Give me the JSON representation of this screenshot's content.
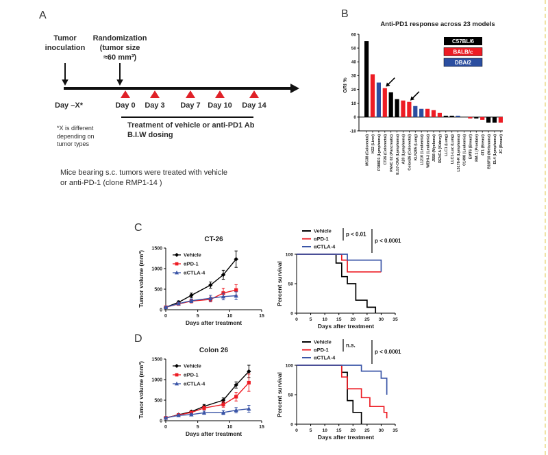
{
  "panel_a": {
    "label": "A",
    "inoculation": "Tumor\ninoculation",
    "randomization": "Randomization\n(tumor size\n≈60 mm³)",
    "day_minus_x": "Day –X*",
    "dose_days": [
      "Day 0",
      "Day 3",
      "Day 7",
      "Day 10",
      "Day 14"
    ],
    "treatment_note": "Treatment of vehicle or anti-PD1 Ab\nB.I.W dosing",
    "footnote": "*X is different\ndepending on\ntumor types",
    "caption": "Mice bearing s.c. tumors were treated with vehicle\nor anti-PD-1 (clone RMP1-14 )"
  },
  "panel_b": {
    "label": "B"
  },
  "panel_c": {
    "label": "C"
  },
  "panel_d": {
    "label": "D"
  },
  "colors": {
    "black": "#000000",
    "red": "#ed1c24",
    "blue_bar": "#2b4ea0",
    "blue_line": "#3a55a7",
    "edge_marker": "#f0e2a6"
  },
  "chart_data": [
    {
      "id": "b-bar",
      "type": "bar",
      "title": "Anti-PD1 response across 23 models",
      "ylabel": "GRI %",
      "ylim": [
        -10,
        60
      ],
      "yticks": [
        -10,
        0,
        10,
        20,
        30,
        40,
        50,
        60
      ],
      "legend": [
        {
          "label": "C57BL/6",
          "color": "#000000"
        },
        {
          "label": "BALB/c",
          "color": "#ed1c24"
        },
        {
          "label": "DBA/2",
          "color": "#2b4ea0"
        }
      ],
      "categories": [
        "MC38 (Colorectal)",
        "H22 (Liver)",
        "P388D1 (Lymphoma)",
        "CT26 (Colorectal)",
        "PANC 02 (Pancreatic)",
        "E.G7-OVA (Lymphoma)",
        "A20 (Lymphoma)",
        "Colon26 (Colorectal)",
        "KLN205 (Lung)",
        "L1210 (Leukemia)",
        "WEHI-3 (Leukemia)",
        "J558 (Myeloma)",
        "RENCA (Kidney)",
        "LLC1 (Lung)",
        "LLC1-Luc (Lung)",
        "L5178-R (Lymphoma)",
        "C1498 (Leukemia)",
        "EMT6 (Breast)",
        "RM-1 (Prostate)",
        "4T1 (Breast)",
        "B16F10 (Melanoma)",
        "EL4 (Lymphoma)",
        "JC (Breast)"
      ],
      "strains": [
        "C57BL/6",
        "BALB/c",
        "DBA/2",
        "BALB/c",
        "C57BL/6",
        "C57BL/6",
        "BALB/c",
        "BALB/c",
        "DBA/2",
        "DBA/2",
        "BALB/c",
        "BALB/c",
        "BALB/c",
        "C57BL/6",
        "C57BL/6",
        "DBA/2",
        "C57BL/6",
        "BALB/c",
        "C57BL/6",
        "BALB/c",
        "C57BL/6",
        "C57BL/6",
        "BALB/c"
      ],
      "values": [
        55,
        31,
        25,
        21,
        18,
        13,
        12,
        11,
        8,
        6,
        6,
        5,
        3,
        1,
        1,
        1,
        0,
        -1,
        -1,
        -2,
        -4,
        -4,
        -4
      ],
      "arrows_at": [
        "CT26 (Colorectal)",
        "Colon26 (Colorectal)"
      ]
    },
    {
      "id": "c-volume",
      "type": "line",
      "title": "CT-26",
      "xlabel": "Days after treatment",
      "ylabel": "Tumor volume (mm³)",
      "xlim": [
        0,
        15
      ],
      "ylim": [
        0,
        1500
      ],
      "xticks": [
        0,
        5,
        10,
        15
      ],
      "yticks": [
        0,
        500,
        1000,
        1500
      ],
      "series": [
        {
          "name": "Vehicle",
          "color": "#000000",
          "marker": "diamond",
          "x": [
            0,
            2,
            4,
            7,
            9,
            11
          ],
          "y": [
            60,
            180,
            350,
            600,
            850,
            1230
          ],
          "err": [
            15,
            35,
            55,
            75,
            110,
            200
          ]
        },
        {
          "name": "αPD-1",
          "color": "#ed1c24",
          "marker": "square",
          "x": [
            0,
            2,
            4,
            7,
            9,
            11
          ],
          "y": [
            60,
            140,
            210,
            250,
            405,
            480
          ],
          "err": [
            15,
            30,
            45,
            60,
            120,
            130
          ]
        },
        {
          "name": "αCTLA-4",
          "color": "#3a55a7",
          "marker": "triangle",
          "x": [
            0,
            2,
            4,
            7,
            9,
            11
          ],
          "y": [
            60,
            150,
            220,
            280,
            320,
            340
          ],
          "err": [
            15,
            30,
            45,
            70,
            80,
            95
          ]
        }
      ]
    },
    {
      "id": "c-survival",
      "type": "survival",
      "xlabel": "Days after treatment",
      "ylabel": "Percent survival",
      "xlim": [
        0,
        35
      ],
      "ylim": [
        0,
        100
      ],
      "xticks": [
        0,
        5,
        10,
        15,
        20,
        25,
        30,
        35
      ],
      "yticks": [
        0,
        50,
        100
      ],
      "annotations": [
        "p < 0.01",
        "p < 0.0001"
      ],
      "series": [
        {
          "name": "Vehicle",
          "color": "#000000",
          "steps": [
            [
              0,
              100
            ],
            [
              14,
              100
            ],
            [
              14,
              85
            ],
            [
              16,
              85
            ],
            [
              16,
              62
            ],
            [
              18,
              62
            ],
            [
              18,
              50
            ],
            [
              21,
              50
            ],
            [
              21,
              22
            ],
            [
              25,
              22
            ],
            [
              25,
              10
            ],
            [
              28,
              10
            ],
            [
              28,
              0
            ]
          ]
        },
        {
          "name": "αPD-1",
          "color": "#ed1c24",
          "steps": [
            [
              0,
              100
            ],
            [
              16,
              100
            ],
            [
              16,
              90
            ],
            [
              18,
              90
            ],
            [
              18,
              70
            ],
            [
              30,
              70
            ]
          ]
        },
        {
          "name": "αCTLA-4",
          "color": "#3a55a7",
          "steps": [
            [
              0,
              100
            ],
            [
              18,
              100
            ],
            [
              18,
              90
            ],
            [
              30,
              90
            ],
            [
              30,
              70
            ]
          ]
        }
      ]
    },
    {
      "id": "d-volume",
      "type": "line",
      "title": "Colon 26",
      "xlabel": "Days after treatment",
      "ylabel": "Tumor volume (mm³)",
      "xlim": [
        0,
        15
      ],
      "ylim": [
        0,
        1500
      ],
      "xticks": [
        0,
        5,
        10,
        15
      ],
      "yticks": [
        0,
        500,
        1000,
        1500
      ],
      "series": [
        {
          "name": "Vehicle",
          "color": "#000000",
          "marker": "diamond",
          "x": [
            0,
            2,
            4,
            6,
            9,
            11,
            13
          ],
          "y": [
            70,
            145,
            220,
            350,
            500,
            870,
            1200
          ],
          "err": [
            10,
            20,
            30,
            45,
            55,
            75,
            150
          ]
        },
        {
          "name": "αPD-1",
          "color": "#ed1c24",
          "marker": "square",
          "x": [
            0,
            2,
            4,
            6,
            9,
            11,
            13
          ],
          "y": [
            70,
            140,
            200,
            310,
            395,
            585,
            925
          ],
          "err": [
            10,
            20,
            30,
            45,
            65,
            105,
            210
          ]
        },
        {
          "name": "αCTLA-4",
          "color": "#3a55a7",
          "marker": "triangle",
          "x": [
            0,
            2,
            4,
            6,
            9,
            11,
            13
          ],
          "y": [
            70,
            130,
            150,
            195,
            200,
            255,
            290
          ],
          "err": [
            10,
            20,
            30,
            40,
            50,
            65,
            85
          ]
        }
      ]
    },
    {
      "id": "d-survival",
      "type": "survival",
      "xlabel": "Days after treatment",
      "ylabel": "Percent survival",
      "xlim": [
        0,
        35
      ],
      "ylim": [
        0,
        100
      ],
      "xticks": [
        0,
        5,
        10,
        15,
        20,
        25,
        30,
        35
      ],
      "yticks": [
        0,
        50,
        100
      ],
      "annotations": [
        "n.s.",
        "p < 0.0001"
      ],
      "series": [
        {
          "name": "Vehicle",
          "color": "#000000",
          "steps": [
            [
              0,
              100
            ],
            [
              16,
              100
            ],
            [
              16,
              88
            ],
            [
              18,
              88
            ],
            [
              18,
              40
            ],
            [
              20,
              40
            ],
            [
              20,
              20
            ],
            [
              23,
              20
            ],
            [
              23,
              0
            ]
          ]
        },
        {
          "name": "αPD-1",
          "color": "#ed1c24",
          "steps": [
            [
              0,
              100
            ],
            [
              16,
              100
            ],
            [
              16,
              80
            ],
            [
              18,
              80
            ],
            [
              18,
              60
            ],
            [
              23,
              60
            ],
            [
              23,
              45
            ],
            [
              26,
              45
            ],
            [
              26,
              30
            ],
            [
              31,
              30
            ],
            [
              31,
              20
            ],
            [
              32,
              20
            ],
            [
              32,
              10
            ]
          ]
        },
        {
          "name": "αCTLA-4",
          "color": "#3a55a7",
          "steps": [
            [
              0,
              100
            ],
            [
              23,
              100
            ],
            [
              23,
              90
            ],
            [
              30,
              90
            ],
            [
              30,
              78
            ],
            [
              32,
              78
            ],
            [
              32,
              50
            ]
          ]
        }
      ]
    }
  ]
}
